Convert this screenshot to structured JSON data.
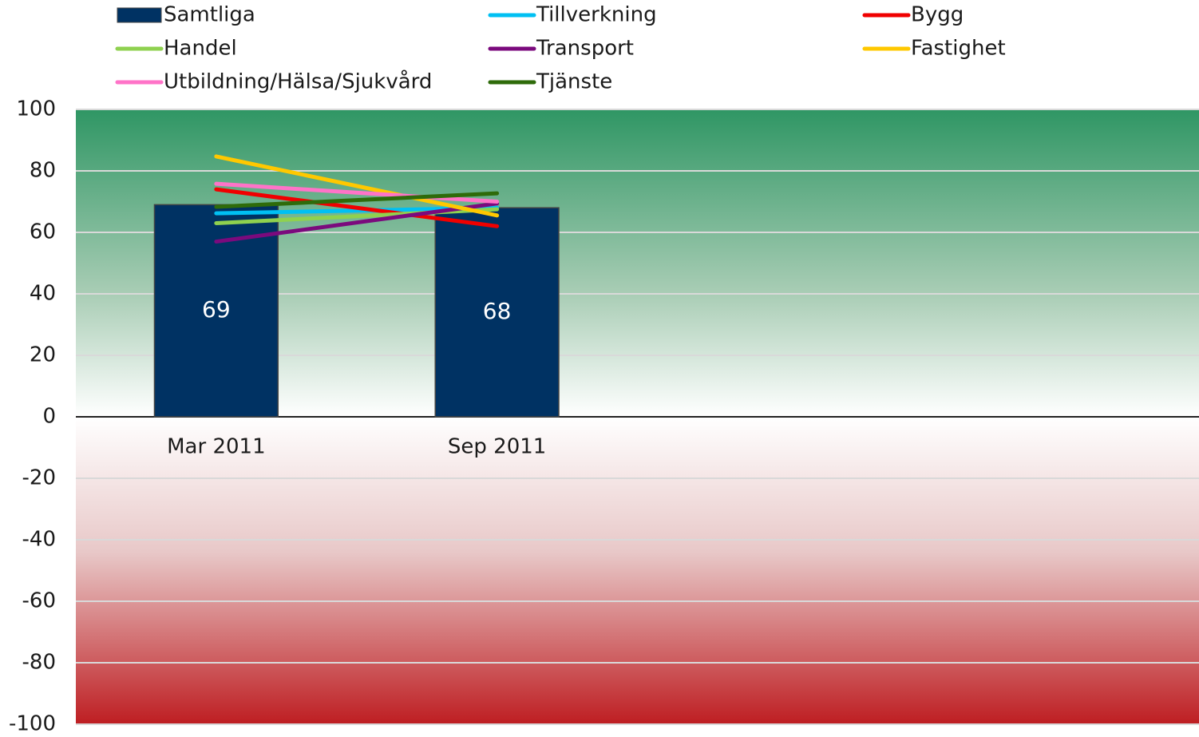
{
  "chart_data": {
    "type": "bar",
    "categories": [
      "Mar 2011",
      "Sep 2011",
      null,
      null
    ],
    "series": [
      {
        "name": "Samtliga",
        "type": "bar",
        "color": "#003263",
        "values": [
          69,
          68,
          null,
          null
        ]
      },
      {
        "name": "Tillverkning",
        "type": "line",
        "color": "#00c0f3",
        "values": [
          66.2,
          68,
          null,
          null
        ]
      },
      {
        "name": "Bygg",
        "type": "line",
        "color": "#f00000",
        "values": [
          74,
          62,
          null,
          null
        ]
      },
      {
        "name": "Handel",
        "type": "line",
        "color": "#8fd14f",
        "values": [
          63,
          67.5,
          null,
          null
        ]
      },
      {
        "name": "Transport",
        "type": "line",
        "color": "#7b0a7d",
        "values": [
          57,
          69.4,
          null,
          null
        ]
      },
      {
        "name": "Fastighet",
        "type": "line",
        "color": "#ffc800",
        "values": [
          84.7,
          65.5,
          null,
          null
        ]
      },
      {
        "name": "Utbildning/Hälsa/Sjukvård",
        "type": "line",
        "color": "#ff73c8",
        "values": [
          75.8,
          70,
          null,
          null
        ]
      },
      {
        "name": "Tjänste",
        "type": "line",
        "color": "#2e6b0a",
        "values": [
          68.3,
          72.7,
          null,
          null
        ]
      }
    ],
    "ylim": [
      -100,
      100
    ],
    "yticks": [
      -100,
      -80,
      -60,
      -40,
      -20,
      0,
      20,
      40,
      60,
      80,
      100
    ],
    "grid": true,
    "legend": "top"
  }
}
